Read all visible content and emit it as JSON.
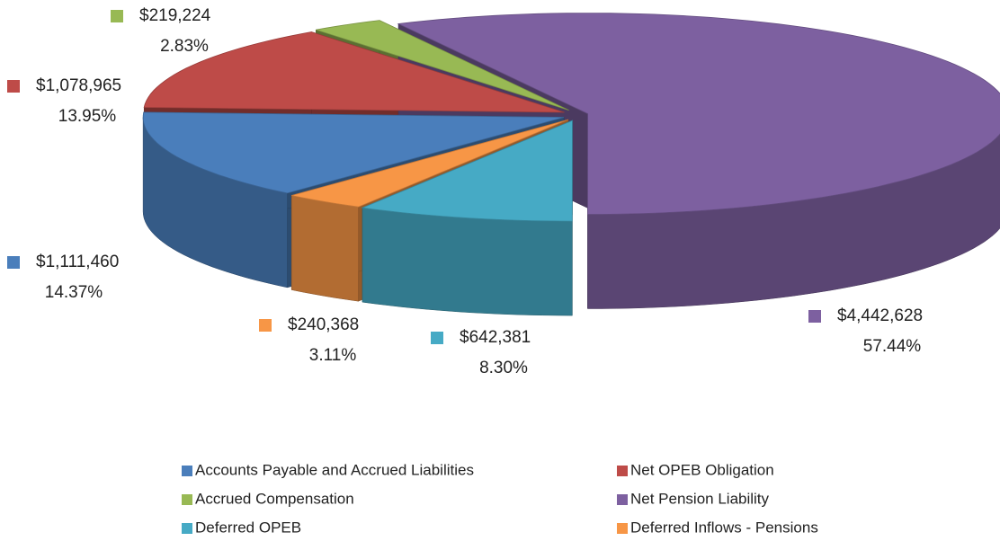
{
  "chart_data": {
    "type": "pie",
    "categories": [
      "Accounts Payable and Accrued Liabilities",
      "Net OPEB Obligation",
      "Accrued Compensation",
      "Net Pension Liability",
      "Deferred OPEB",
      "Deferred Inflows - Pensions"
    ],
    "values": [
      1111460,
      1078965,
      219224,
      4442628,
      642381,
      240368
    ],
    "value_labels": [
      "$1,111,460",
      "$1,078,965",
      "$219,224",
      "$4,442,628",
      "$642,381",
      "$240,368"
    ],
    "percent_labels": [
      "14.37%",
      "13.95%",
      "2.83%",
      "57.44%",
      "8.30%",
      "3.11%"
    ],
    "colors": [
      "#4a7ebb",
      "#be4b48",
      "#98b954",
      "#7d60a0",
      "#46aac5",
      "#f79646"
    ],
    "legend": "bottom"
  }
}
